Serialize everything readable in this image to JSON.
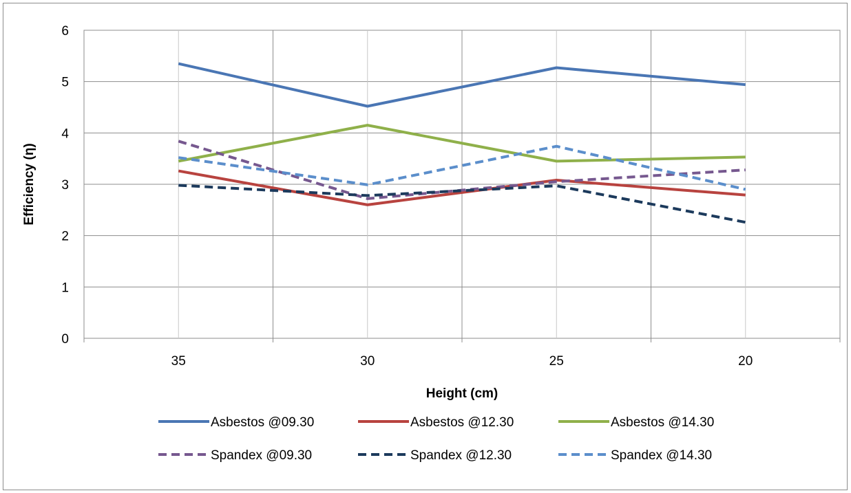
{
  "chart_data": {
    "type": "line",
    "title": "",
    "xlabel": "Height (cm)",
    "ylabel": "Efficiency (η)",
    "categories": [
      "35",
      "30",
      "25",
      "20"
    ],
    "ylim": [
      0,
      6
    ],
    "yticks": [
      "0",
      "1",
      "2",
      "3",
      "4",
      "5",
      "6"
    ],
    "grid": true,
    "legend_position": "bottom",
    "series": [
      {
        "name": "Asbestos @09.30",
        "values": [
          5.35,
          4.52,
          5.27,
          4.94
        ],
        "color": "#4a76b4",
        "dash": "solid"
      },
      {
        "name": "Asbestos @12.30",
        "values": [
          3.26,
          2.6,
          3.08,
          2.79
        ],
        "color": "#b8433f",
        "dash": "solid"
      },
      {
        "name": "Asbestos @14.30",
        "values": [
          3.45,
          4.15,
          3.45,
          3.53
        ],
        "color": "#8fb04a",
        "dash": "solid"
      },
      {
        "name": "Spandex @09.30",
        "values": [
          3.84,
          2.72,
          3.05,
          3.28
        ],
        "color": "#76588f",
        "dash": "dashed"
      },
      {
        "name": "Spandex @12.30",
        "values": [
          2.98,
          2.78,
          2.97,
          2.26
        ],
        "color": "#1c3a5c",
        "dash": "dashed"
      },
      {
        "name": "Spandex @14.30",
        "values": [
          3.52,
          2.99,
          3.74,
          2.9
        ],
        "color": "#5b8ecb",
        "dash": "dashed"
      }
    ]
  }
}
